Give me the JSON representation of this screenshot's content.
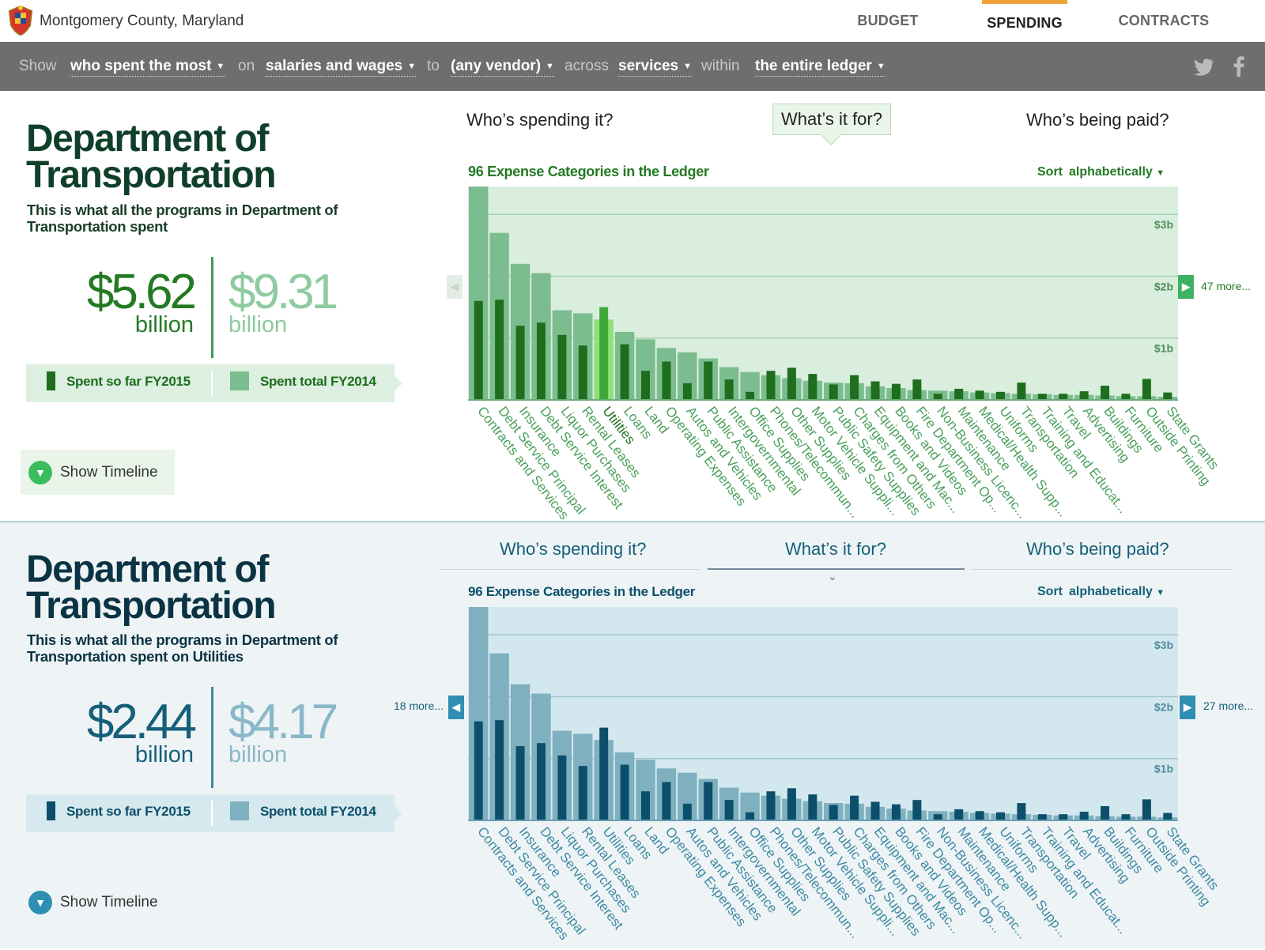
{
  "header": {
    "brand": "Montgomery County, Maryland",
    "nav": [
      {
        "label": "BUDGET"
      },
      {
        "label": "SPENDING"
      },
      {
        "label": "CONTRACTS"
      }
    ]
  },
  "filters": {
    "show": "Show",
    "show_value": "who spent the most",
    "on": "on",
    "on_value": "salaries and wages",
    "to": "to",
    "to_value": "(any vendor)",
    "across": "across",
    "across_value": "services",
    "within": "within",
    "within_value": "the entire ledger"
  },
  "colors": {
    "green_dark": "#1e6e1e",
    "green_mid": "#2e8b2e",
    "green_light": "#7cbd8f",
    "green_bg": "#dcefe0",
    "teal_dark": "#0c4f6a",
    "teal_mid": "#155f7a",
    "teal_light": "#7fb0c0",
    "teal_bg": "#d6e9ee",
    "highlight": "#6ccf5a"
  },
  "panels": [
    {
      "title": "Department of Transportation",
      "subtitle": "This is what all the programs in Department of Transportation spent",
      "spent_so_far": "$5.62",
      "spent_total": "$9.31",
      "unit": "billion",
      "legend_so_far": "Spent so far FY2015",
      "legend_total": "Spent total FY2014",
      "timeline": "Show Timeline",
      "tabs": [
        "Who’s spending it?",
        "What’s it for?",
        "Who’s being paid?"
      ],
      "chart_title": "96 Expense Categories in the Ledger",
      "sort_label": "Sort",
      "sort_value": "alphabetically",
      "more_left": "",
      "more_right": "47 more..."
    },
    {
      "title": "Department of Transportation",
      "subtitle": "This is what all the programs in Department of Transportation spent on Utilities",
      "spent_so_far": "$2.44",
      "spent_total": "$4.17",
      "unit": "billion",
      "legend_so_far": "Spent so far FY2015",
      "legend_total": "Spent total FY2014",
      "timeline": "Show Timeline",
      "tabs": [
        "Who’s spending it?",
        "What’s it for?",
        "Who’s being paid?"
      ],
      "chart_title": "96 Expense Categories in the Ledger",
      "sort_label": "Sort",
      "sort_value": "alphabetically",
      "more_left": "18 more...",
      "more_right": "27 more..."
    }
  ],
  "chart_data": [
    {
      "type": "bar",
      "title": "96 Expense Categories in the Ledger",
      "y_ticks": [
        "$1b",
        "$2b",
        "$3b"
      ],
      "ylim": [
        0,
        3.45
      ],
      "highlight": "Utilities",
      "categories": [
        "Contracts and Services",
        "Debt Service Principal",
        "Insurance",
        "Debt Service Interest",
        "Liquor Purchases",
        "Rental Leases",
        "Utilities",
        "Loans",
        "Land",
        "Operating Expenses",
        "Autos and Vehicles",
        "Public Assistance",
        "Intergovernmental",
        "Office Supplies",
        "Phones/Telecommun...",
        "Other Supplies",
        "Motor Vehicle Suppli...",
        "Public Safety Supplies",
        "Charges from Others",
        "Equipment and Mac...",
        "Books and Videos",
        "Fire Department Op...",
        "Non-Business Licenc...",
        "Maintenance",
        "Medical/Health Supp...",
        "Uniforms",
        "Transportation",
        "Training and Educat...",
        "Travel",
        "Advertising",
        "Buildings",
        "Furniture",
        "Outside Printing",
        "State Grants"
      ],
      "series": [
        {
          "name": "Spent total FY2014",
          "values": [
            3.45,
            2.7,
            2.2,
            2.05,
            1.45,
            1.4,
            1.3,
            1.1,
            0.98,
            0.84,
            0.77,
            0.67,
            0.53,
            0.45,
            0.4,
            0.35,
            0.31,
            0.28,
            0.27,
            0.22,
            0.19,
            0.16,
            0.15,
            0.14,
            0.12,
            0.11,
            0.1,
            0.09,
            0.08,
            0.08,
            0.07,
            0.06,
            0.06,
            0.05
          ]
        },
        {
          "name": "Spent so far FY2015",
          "values": [
            1.6,
            1.62,
            1.2,
            1.25,
            1.05,
            0.88,
            1.5,
            0.9,
            0.47,
            0.62,
            0.27,
            0.62,
            0.33,
            0.13,
            0.47,
            0.52,
            0.42,
            0.25,
            0.4,
            0.3,
            0.26,
            0.33,
            0.1,
            0.18,
            0.15,
            0.13,
            0.28,
            0.1,
            0.1,
            0.14,
            0.23,
            0.1,
            0.34,
            0.12
          ]
        }
      ]
    },
    {
      "type": "bar",
      "title": "96 Expense Categories in the Ledger",
      "y_ticks": [
        "$1b",
        "$2b",
        "$3b"
      ],
      "ylim": [
        0,
        3.45
      ],
      "categories": [
        "Contracts and Services",
        "Debt Service Principal",
        "Insurance",
        "Debt Service Interest",
        "Liquor Purchases",
        "Rental Leases",
        "Utilities",
        "Loans",
        "Land",
        "Operating Expenses",
        "Autos and Vehicles",
        "Public Assistance",
        "Intergovernmental",
        "Office Supplies",
        "Phones/Telecommun...",
        "Other Supplies",
        "Motor Vehicle Suppli...",
        "Public Safety Supplies",
        "Charges from Others",
        "Equipment and Mac...",
        "Books and Videos",
        "Fire Department Op...",
        "Non-Business Licenc...",
        "Maintenance",
        "Medical/Health Supp...",
        "Uniforms",
        "Transportation",
        "Training and Educat...",
        "Travel",
        "Advertising",
        "Buildings",
        "Furniture",
        "Outside Printing",
        "State Grants"
      ],
      "series": [
        {
          "name": "Spent total FY2014",
          "values": [
            3.45,
            2.7,
            2.2,
            2.05,
            1.45,
            1.4,
            1.3,
            1.1,
            0.98,
            0.84,
            0.77,
            0.67,
            0.53,
            0.45,
            0.4,
            0.35,
            0.31,
            0.28,
            0.27,
            0.22,
            0.19,
            0.16,
            0.15,
            0.14,
            0.12,
            0.11,
            0.1,
            0.09,
            0.08,
            0.08,
            0.07,
            0.06,
            0.06,
            0.05
          ]
        },
        {
          "name": "Spent so far FY2015",
          "values": [
            1.6,
            1.62,
            1.2,
            1.25,
            1.05,
            0.88,
            1.5,
            0.9,
            0.47,
            0.62,
            0.27,
            0.62,
            0.33,
            0.13,
            0.47,
            0.52,
            0.42,
            0.25,
            0.4,
            0.3,
            0.26,
            0.33,
            0.1,
            0.18,
            0.15,
            0.13,
            0.28,
            0.1,
            0.1,
            0.14,
            0.23,
            0.1,
            0.34,
            0.12
          ]
        }
      ]
    }
  ]
}
